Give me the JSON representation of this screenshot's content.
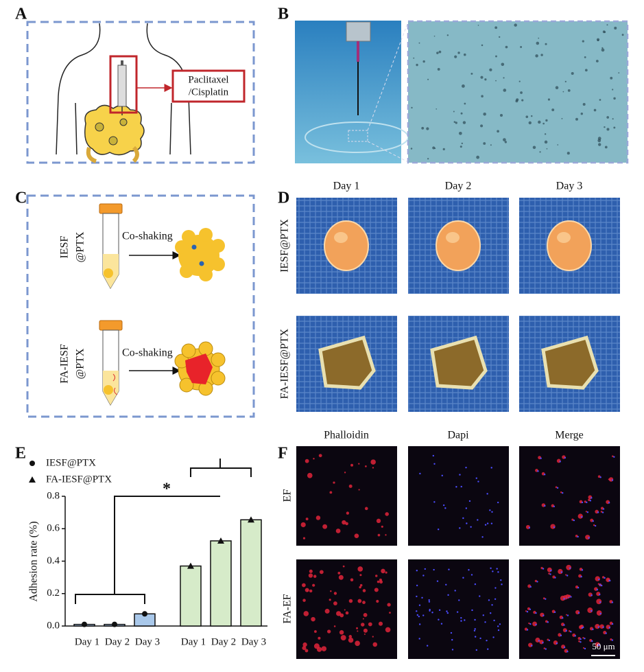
{
  "panels": {
    "A": {
      "label": "A",
      "callout": [
        "Paclitaxel",
        "/Cisplatin"
      ]
    },
    "B": {
      "label": "B"
    },
    "C": {
      "label": "C",
      "rows": [
        {
          "name": [
            "IESF",
            "@PTX"
          ],
          "action": "Co-shaking"
        },
        {
          "name": [
            "FA-IESF",
            "@PTX"
          ],
          "action": "Co-shaking"
        }
      ]
    },
    "D": {
      "label": "D",
      "columns": [
        "Day 1",
        "Day 2",
        "Day 3"
      ],
      "rows": [
        "IESF@PTX",
        "FA-IESF@PTX"
      ]
    },
    "E": {
      "label": "E"
    },
    "F": {
      "label": "F",
      "columns": [
        "Phalloidin",
        "Dapi",
        "Merge"
      ],
      "rows": [
        "EF",
        "FA-EF"
      ],
      "scale_bar": "50 μm"
    }
  },
  "chart_data": {
    "type": "bar",
    "y_label": "Adhesion rate (%)",
    "annotation": "*",
    "categories": [
      "Day 1",
      "Day 2",
      "Day 3"
    ],
    "series": [
      {
        "name": "IESF@PTX",
        "color": "#a9c8ea",
        "marker": "circle",
        "values": [
          0.01,
          0.01,
          0.075
        ]
      },
      {
        "name": "FA-IESF@PTX",
        "color": "#d6ebc9",
        "marker": "triangle",
        "values": [
          0.37,
          0.525,
          0.655
        ]
      }
    ],
    "ylim": [
      0,
      0.8
    ],
    "yticks": [
      {
        "value": 0,
        "label": "0.0"
      },
      0.2,
      0.4,
      0.6,
      0.8
    ]
  }
}
